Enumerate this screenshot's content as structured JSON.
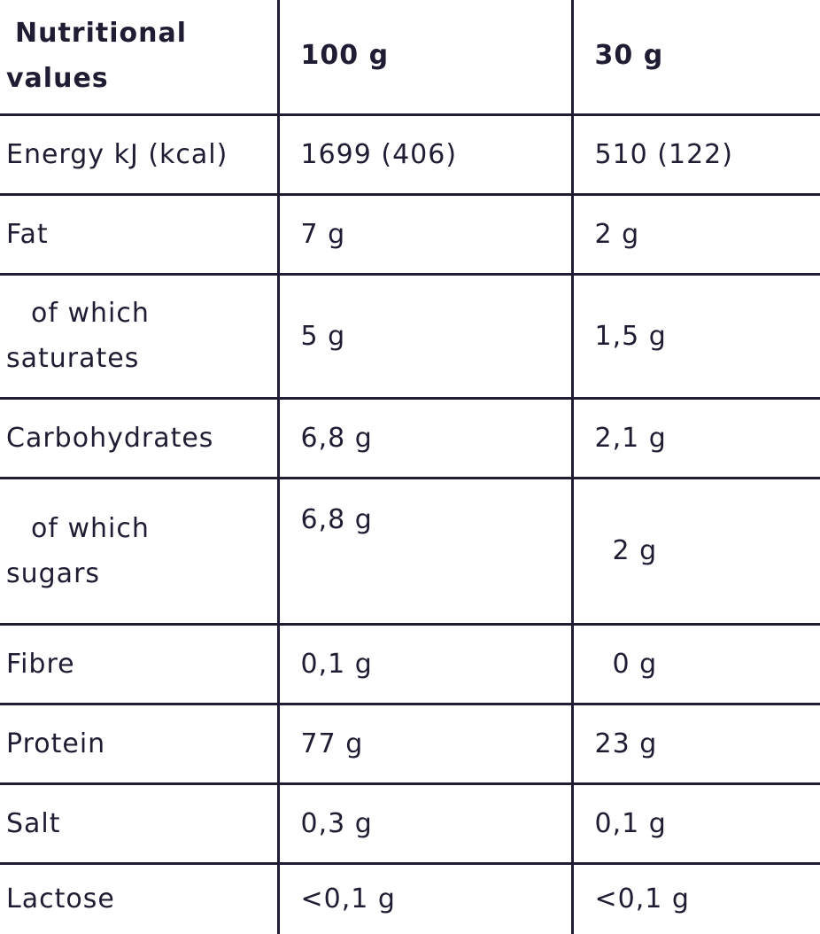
{
  "header": {
    "col1_line1": "Nutritional",
    "col1_line2": "values",
    "col2": "100 g",
    "col3": "30 g"
  },
  "rows": [
    {
      "label": "Energy kJ (kcal)",
      "per100": "1699 (406)",
      "per30": "510 (122)"
    },
    {
      "label": "Fat",
      "per100": "7 g",
      "per30": "2 g"
    },
    {
      "label_line1": "of which",
      "label_line2": "saturates",
      "per100": "5 g",
      "per30": "1,5 g"
    },
    {
      "label": "Carbohydrates",
      "per100": "6,8 g",
      "per30": "2,1 g"
    },
    {
      "label_line1": "of which",
      "label_line2": "sugars",
      "per100": "6,8 g",
      "per30": "2 g"
    },
    {
      "label": "Fibre",
      "per100": "0,1 g",
      "per30": "0 g"
    },
    {
      "label": "Protein",
      "per100": "77 g",
      "per30": "23 g"
    },
    {
      "label": "Salt",
      "per100": "0,3 g",
      "per30": "0,1 g"
    },
    {
      "label": "Lactose",
      "per100": "<0,1 g",
      "per30": "<0,1 g"
    }
  ]
}
